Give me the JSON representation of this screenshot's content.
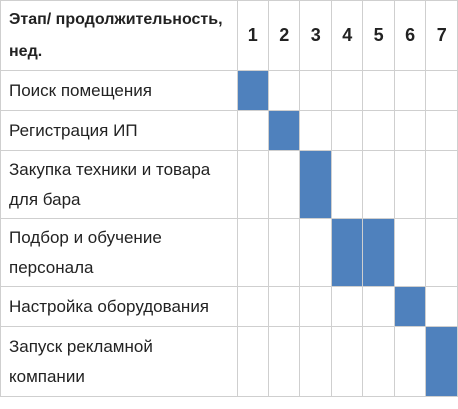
{
  "chart_data": {
    "type": "table",
    "header": {
      "stage_label": "Этап/ продолжительность, нед.",
      "weeks": [
        "1",
        "2",
        "3",
        "4",
        "5",
        "6",
        "7"
      ]
    },
    "stages": [
      {
        "name": "Поиск помещения",
        "weeks": [
          1
        ]
      },
      {
        "name": "Регистрация ИП",
        "weeks": [
          2
        ]
      },
      {
        "name": "Закупка техники и товара для бара",
        "weeks": [
          3
        ]
      },
      {
        "name": "Подбор и обучение персонала",
        "weeks": [
          4,
          5
        ]
      },
      {
        "name": "Настройка оборудования",
        "weeks": [
          6
        ]
      },
      {
        "name": "Запуск рекламной компании",
        "weeks": [
          7
        ]
      }
    ],
    "bar_color": "#4f81bd",
    "grid_color": "#cfcfcf"
  }
}
